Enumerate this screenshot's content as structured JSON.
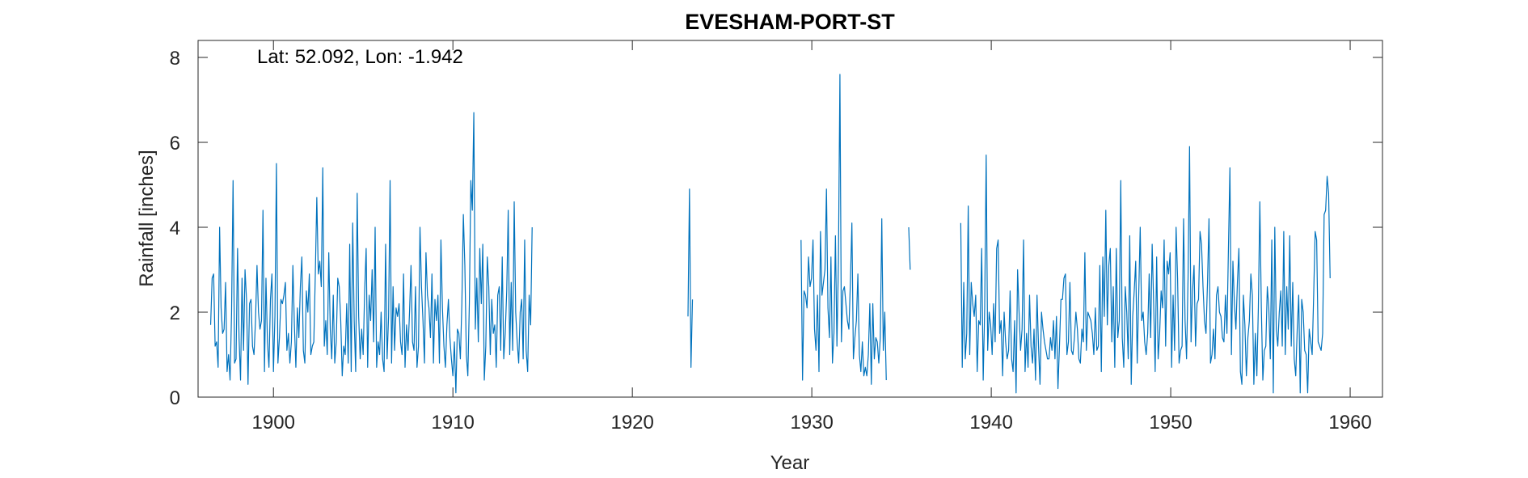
{
  "chart_data": {
    "type": "line",
    "title": "EVESHAM-PORT-ST",
    "annotation": "Lat: 52.092, Lon: -1.942",
    "xlabel": "Year",
    "ylabel": "Rainfall [inches]",
    "xlim": [
      1895.8,
      1961.8
    ],
    "ylim": [
      0,
      8.4
    ],
    "xticks": [
      1900,
      1910,
      1920,
      1930,
      1940,
      1950,
      1960
    ],
    "yticks": [
      0,
      2,
      4,
      6,
      8
    ],
    "grid": false,
    "line_color": "#0072BD",
    "series": [
      {
        "segments": [
          {
            "start": 1896.5,
            "step": 0.08333,
            "values": [
              1.7,
              2.8,
              2.9,
              1.2,
              1.3,
              0.7,
              4.0,
              2.1,
              1.5,
              1.6,
              2.7,
              0.6,
              1.0,
              0.4,
              2.0,
              5.1,
              0.8,
              0.9,
              3.5,
              1.4,
              0.4,
              2.8,
              1.1,
              3.0,
              2.3,
              0.3,
              2.2,
              2.3,
              1.2,
              1.0,
              1.8,
              3.1,
              2.0,
              1.6,
              1.8,
              4.4,
              0.6,
              2.8,
              1.3,
              0.7,
              2.3,
              2.9,
              0.6,
              1.9,
              5.5,
              0.8,
              1.4,
              2.3,
              2.2,
              2.4,
              2.7,
              1.1,
              1.5,
              0.8,
              1.3,
              3.1,
              1.7,
              0.7,
              2.1,
              1.4,
              2.6,
              3.3,
              1.1,
              0.8,
              2.5,
              2.0,
              2.9,
              1.0,
              1.2,
              1.3,
              2.9,
              4.7,
              2.9,
              3.2,
              2.6,
              5.4,
              1.2,
              1.8,
              1.0,
              3.4,
              1.6,
              0.9,
              2.4,
              0.8,
              1.3,
              2.8,
              2.6,
              1.8,
              0.5,
              1.2,
              1.0,
              2.2,
              0.8,
              3.6,
              0.6,
              4.1,
              1.8,
              0.6,
              4.8,
              1.9,
              0.9,
              1.6,
              1.0,
              2.5,
              3.5,
              0.7,
              2.4,
              1.8,
              3.0,
              1.3,
              4.0,
              0.7,
              1.3,
              1.0,
              2.0,
              0.9,
              0.6,
              3.6,
              0.9,
              1.9,
              5.1,
              0.8,
              2.6,
              1.1,
              2.1,
              1.9,
              2.2,
              1.3,
              1.0,
              2.9,
              0.7,
              1.7,
              1.1,
              2.0,
              3.1,
              1.3,
              1.1,
              2.6,
              0.7,
              1.2,
              4.0,
              2.6,
              1.8,
              0.8,
              3.4,
              2.4,
              2.1,
              1.4,
              2.9,
              0.8,
              2.3,
              1.8,
              2.4,
              0.8,
              3.7,
              2.1,
              1.2,
              0.7,
              1.7,
              2.3,
              1.4,
              0.9,
              0.5,
              1.3,
              0.1,
              1.6,
              1.5,
              0.9,
              2.2,
              4.3,
              3.1,
              1.0,
              0.5,
              2.2,
              5.1,
              4.4,
              6.7,
              1.6,
              2.8,
              1.3,
              3.5,
              2.2,
              3.6,
              0.4,
              1.2,
              3.3,
              2.6,
              1.0,
              2.3,
              1.5,
              1.7,
              0.7,
              2.4,
              2.6,
              1.1,
              3.3,
              0.9,
              1.5,
              2.5,
              4.4,
              1.0,
              2.7,
              1.1,
              4.6,
              2.0,
              1.3,
              0.8,
              2.0,
              2.3,
              0.9,
              3.7,
              1.1,
              0.6,
              2.4,
              1.7,
              4.0
            ]
          },
          {
            "start": 1923.1,
            "step": 0.08333,
            "values": [
              1.9,
              4.9,
              0.7,
              2.3
            ]
          },
          {
            "start": 1929.4,
            "step": 0.08333,
            "values": [
              3.7,
              0.4,
              2.5,
              2.4,
              2.1,
              3.3,
              2.6,
              2.8,
              3.7,
              1.6,
              1.1,
              2.4,
              0.6,
              3.9,
              2.4,
              2.7,
              3.0,
              4.9,
              2.1,
              1.4,
              3.3,
              0.8,
              1.5,
              3.8,
              1.2,
              3.2,
              7.6,
              1.3,
              2.5,
              2.6,
              2.2,
              1.8,
              1.6,
              2.7,
              4.1,
              0.9,
              1.4,
              1.8,
              2.9,
              1.0,
              0.6,
              1.3,
              0.5,
              0.7,
              0.5,
              1.0,
              2.2,
              0.3,
              2.2,
              0.9,
              1.4,
              1.3,
              0.8,
              1.4,
              4.2,
              1.1,
              2.0,
              0.4
            ]
          },
          {
            "start": 1935.4,
            "step": 0.08333,
            "values": [
              4.0,
              3.0
            ]
          },
          {
            "start": 1938.3,
            "step": 0.08333,
            "values": [
              4.1,
              0.7,
              2.7,
              0.9,
              1.5,
              4.5,
              1.0,
              2.7,
              2.2,
              1.9,
              2.4,
              0.6,
              1.8,
              1.7,
              3.5,
              0.4,
              2.1,
              5.7,
              1.1,
              2.0,
              1.7,
              1.0,
              2.2,
              1.3,
              3.5,
              3.7,
              1.5,
              1.8,
              0.5,
              2.0,
              1.3,
              0.9,
              1.1,
              2.5,
              0.9,
              0.6,
              1.8,
              0.1,
              3.0,
              2.0,
              1.1,
              1.6,
              3.7,
              0.6,
              1.5,
              0.7,
              2.4,
              1.2,
              0.8,
              1.6,
              0.4,
              2.4,
              1.2,
              0.3,
              2.0,
              1.6,
              1.3,
              1.1,
              0.9,
              0.9,
              1.4,
              1.1,
              1.8,
              0.9,
              1.9,
              0.2,
              1.2,
              2.3,
              2.3,
              2.8,
              2.9,
              1.0,
              1.3,
              2.7,
              1.1,
              1.0,
              1.4,
              2.0,
              1.6,
              0.9,
              0.8,
              1.6,
              1.3,
              3.4,
              1.1,
              2.0,
              1.9,
              1.8,
              1.5,
              1.0,
              2.1,
              1.1,
              1.2,
              3.1,
              0.6,
              3.3,
              1.9,
              4.4,
              1.7,
              3.1,
              3.5,
              1.3,
              2.6,
              0.7,
              3.5,
              1.4,
              1.8,
              5.1,
              1.4,
              0.7,
              2.6,
              2.0,
              0.9,
              3.8,
              0.3,
              1.9,
              2.5,
              3.2,
              0.8,
              2.4,
              4.0,
              1.8,
              2.0,
              1.3,
              1.0,
              1.5,
              2.9,
              1.4,
              3.6,
              2.2,
              0.6,
              3.3,
              0.9,
              1.5,
              2.5,
              2.1,
              3.7,
              1.2,
              3.2,
              2.9,
              3.4,
              0.7,
              2.4,
              1.1,
              4.0,
              2.8,
              0.8,
              1.1,
              1.2,
              4.2,
              1.8,
              0.9,
              2.8,
              5.9,
              1.3,
              2.5,
              3.1,
              1.2,
              2.2,
              2.3,
              3.9,
              3.6,
              2.6,
              1.8,
              1.5,
              2.7,
              4.2,
              0.8,
              1.0,
              1.6,
              0.9,
              2.4,
              2.6,
              2.0,
              1.9,
              1.4,
              1.3,
              2.4,
              1.5,
              3.5,
              5.4,
              1.0,
              3.2,
              2.2,
              1.6,
              2.7,
              3.5,
              0.6,
              0.3,
              2.4,
              1.7,
              0.5,
              1.4,
              1.8,
              2.9,
              2.4,
              0.3,
              1.5,
              0.5,
              2.1,
              4.6,
              2.1,
              0.4,
              1.1,
              1.2,
              2.6,
              2.1,
              0.9,
              3.7,
              0.1,
              4.0,
              1.6,
              1.2,
              2.0,
              2.5,
              1.2,
              3.9,
              1.0,
              2.6,
              1.6,
              3.8,
              1.2,
              2.7,
              0.9,
              0.5,
              1.6,
              2.4,
              0.1,
              2.3,
              2.0,
              1.1,
              1.0,
              0.1,
              1.6,
              1.3,
              1.0,
              2.4,
              3.9,
              3.7,
              1.3,
              1.2,
              1.1,
              1.5,
              4.3,
              4.4,
              5.2,
              4.8,
              2.8
            ]
          }
        ]
      }
    ]
  }
}
